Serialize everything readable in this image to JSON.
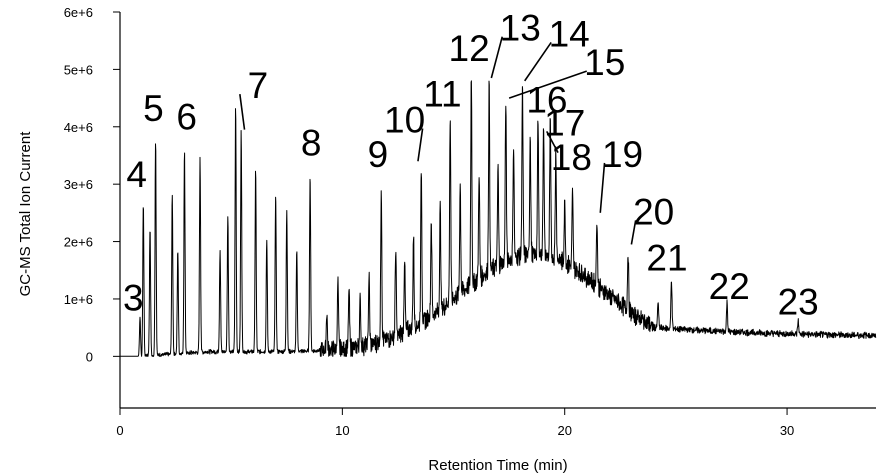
{
  "chart_data": {
    "type": "line",
    "title": "",
    "xlabel": "Retention Time (min)",
    "ylabel": "GC-MS Total Ion Current",
    "xlim": [
      0,
      34
    ],
    "ylim": [
      -900000,
      6000000
    ],
    "x_ticks": [
      0,
      10,
      20,
      30
    ],
    "y_ticks": [
      0,
      1000000,
      2000000,
      3000000,
      4000000,
      5000000,
      6000000
    ],
    "x_tick_labels": [
      "0",
      "10",
      "20",
      "30"
    ],
    "y_tick_labels": [
      "0",
      "1e+6",
      "2e+6",
      "3e+6",
      "4e+6",
      "5e+6",
      "6e+6"
    ],
    "grid": false,
    "series": [
      {
        "peaks": [
          {
            "x": 0.9,
            "y": 650000
          },
          {
            "x": 1.05,
            "y": 2650000
          },
          {
            "x": 1.35,
            "y": 2250000
          },
          {
            "x": 1.6,
            "y": 3780000
          },
          {
            "x": 2.35,
            "y": 2800000
          },
          {
            "x": 2.6,
            "y": 1850000
          },
          {
            "x": 2.9,
            "y": 3560000
          },
          {
            "x": 3.6,
            "y": 3450000
          },
          {
            "x": 4.5,
            "y": 1850000
          },
          {
            "x": 4.85,
            "y": 2450000
          },
          {
            "x": 5.2,
            "y": 4350000
          },
          {
            "x": 5.45,
            "y": 3920000
          },
          {
            "x": 6.1,
            "y": 3250000
          },
          {
            "x": 6.6,
            "y": 2050000
          },
          {
            "x": 7.0,
            "y": 2800000
          },
          {
            "x": 7.5,
            "y": 2550000
          },
          {
            "x": 7.95,
            "y": 1850000
          },
          {
            "x": 8.55,
            "y": 3150000
          },
          {
            "x": 9.3,
            "y": 800000
          },
          {
            "x": 9.8,
            "y": 1300000
          },
          {
            "x": 10.3,
            "y": 1200000
          },
          {
            "x": 10.8,
            "y": 1000000
          },
          {
            "x": 11.2,
            "y": 1400000
          },
          {
            "x": 11.75,
            "y": 3000000
          },
          {
            "x": 12.4,
            "y": 1900000
          },
          {
            "x": 12.8,
            "y": 1700000
          },
          {
            "x": 13.2,
            "y": 2100000
          },
          {
            "x": 13.55,
            "y": 3300000
          },
          {
            "x": 14.0,
            "y": 2400000
          },
          {
            "x": 14.4,
            "y": 2600000
          },
          {
            "x": 14.85,
            "y": 4250000
          },
          {
            "x": 15.3,
            "y": 3000000
          },
          {
            "x": 15.8,
            "y": 4950000
          },
          {
            "x": 16.15,
            "y": 3200000
          },
          {
            "x": 16.6,
            "y": 4750000
          },
          {
            "x": 17.0,
            "y": 3300000
          },
          {
            "x": 17.35,
            "y": 4500000
          },
          {
            "x": 17.7,
            "y": 3700000
          },
          {
            "x": 18.1,
            "y": 4700000
          },
          {
            "x": 18.45,
            "y": 3900000
          },
          {
            "x": 18.8,
            "y": 4100000
          },
          {
            "x": 19.05,
            "y": 4150000
          },
          {
            "x": 19.35,
            "y": 4050000
          },
          {
            "x": 19.6,
            "y": 3600000
          },
          {
            "x": 20.0,
            "y": 2700000
          },
          {
            "x": 20.35,
            "y": 2850000
          },
          {
            "x": 21.45,
            "y": 2400000
          },
          {
            "x": 22.85,
            "y": 1850000
          },
          {
            "x": 24.2,
            "y": 950000
          },
          {
            "x": 24.8,
            "y": 1350000
          },
          {
            "x": 27.3,
            "y": 950000
          },
          {
            "x": 30.5,
            "y": 620000
          }
        ]
      }
    ],
    "peak_labels": [
      {
        "text": "3",
        "x": 0.6,
        "y": 800000,
        "tip_x": 0.6,
        "tip_y": 800000
      },
      {
        "text": "4",
        "x": 0.75,
        "y": 2950000,
        "tip_x": 0.75,
        "tip_y": 2950000
      },
      {
        "text": "5",
        "x": 1.5,
        "y": 4100000,
        "tip_x": 1.5,
        "tip_y": 4100000
      },
      {
        "text": "6",
        "x": 3.0,
        "y": 3950000,
        "tip_x": 3.0,
        "tip_y": 3950000
      },
      {
        "text": "7",
        "x": 6.2,
        "y": 4500000,
        "tip_x": 5.6,
        "tip_y": 3950000
      },
      {
        "text": "8",
        "x": 8.6,
        "y": 3500000,
        "tip_x": 8.6,
        "tip_y": 3500000
      },
      {
        "text": "9",
        "x": 11.6,
        "y": 3300000,
        "tip_x": 11.6,
        "tip_y": 3300000
      },
      {
        "text": "10",
        "x": 12.8,
        "y": 3900000,
        "tip_x": 13.4,
        "tip_y": 3400000
      },
      {
        "text": "11",
        "x": 14.5,
        "y": 4350000,
        "tip_x": 14.5,
        "tip_y": 4350000
      },
      {
        "text": "12",
        "x": 15.7,
        "y": 5150000,
        "tip_x": 15.7,
        "tip_y": 5150000
      },
      {
        "text": "13",
        "x": 18.0,
        "y": 5500000,
        "tip_x": 16.7,
        "tip_y": 4850000
      },
      {
        "text": "14",
        "x": 20.2,
        "y": 5400000,
        "tip_x": 18.2,
        "tip_y": 4800000
      },
      {
        "text": "15",
        "x": 21.8,
        "y": 4900000,
        "tip_x": 17.5,
        "tip_y": 4500000
      },
      {
        "text": "16",
        "x": 19.2,
        "y": 4250000,
        "tip_x": 19.2,
        "tip_y": 4250000
      },
      {
        "text": "17",
        "x": 20.0,
        "y": 3850000,
        "tip_x": 19.7,
        "tip_y": 3550000
      },
      {
        "text": "18",
        "x": 20.3,
        "y": 3250000,
        "tip_x": 20.3,
        "tip_y": 3250000
      },
      {
        "text": "19",
        "x": 22.6,
        "y": 3300000,
        "tip_x": 21.6,
        "tip_y": 2500000
      },
      {
        "text": "20",
        "x": 24.0,
        "y": 2300000,
        "tip_x": 23.0,
        "tip_y": 1950000
      },
      {
        "text": "21",
        "x": 24.6,
        "y": 1500000,
        "tip_x": 24.6,
        "tip_y": 1500000
      },
      {
        "text": "22",
        "x": 27.4,
        "y": 1000000,
        "tip_x": 27.4,
        "tip_y": 1000000
      },
      {
        "text": "23",
        "x": 30.5,
        "y": 730000,
        "tip_x": 30.5,
        "tip_y": 730000
      }
    ]
  }
}
